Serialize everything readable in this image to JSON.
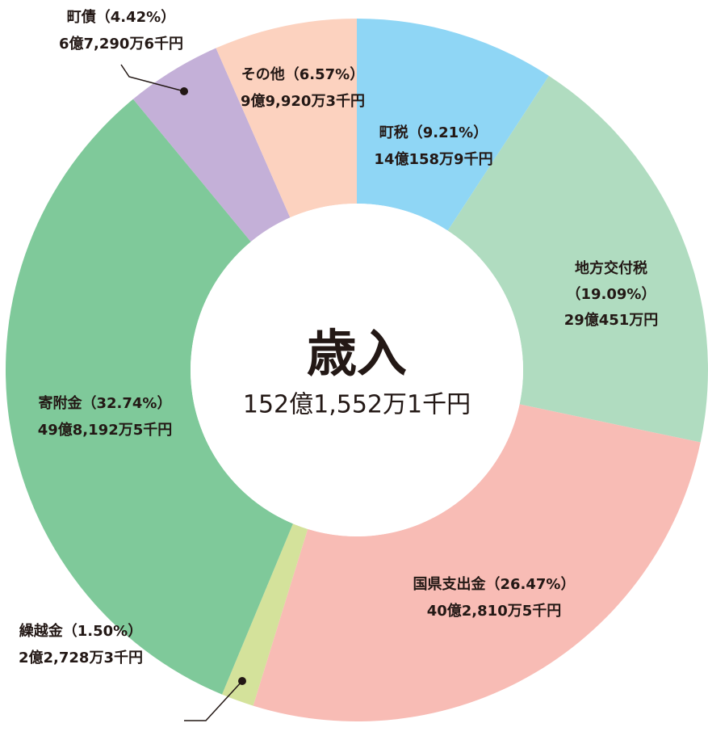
{
  "chart_data": {
    "type": "donut",
    "title": "歳入",
    "subtitle": "152億1,552万1千円",
    "categories": [
      "町税",
      "地方交付税",
      "国県支出金",
      "繰越金",
      "寄附金",
      "町債",
      "その他"
    ],
    "values": [
      9.21,
      19.09,
      26.47,
      1.5,
      32.74,
      4.42,
      6.57
    ],
    "value_labels": [
      "（9.21%）",
      "（19.09%）",
      "（26.47%）",
      "（1.50%）",
      "（32.74%）",
      "（4.42%）",
      "（6.57%）"
    ],
    "amount_labels": [
      "14億158万9千円",
      "29億451万円",
      "40億2,810万5千円",
      "2億2,728万3千円",
      "49億8,192万5千円",
      "6億7,290万6千円",
      "9億9,920万3千円"
    ],
    "colors": [
      "#8fd6f5",
      "#b0dcc0",
      "#f8bcb5",
      "#d4e29b",
      "#7fc99a",
      "#c4b0d8",
      "#fcd2bf"
    ]
  }
}
